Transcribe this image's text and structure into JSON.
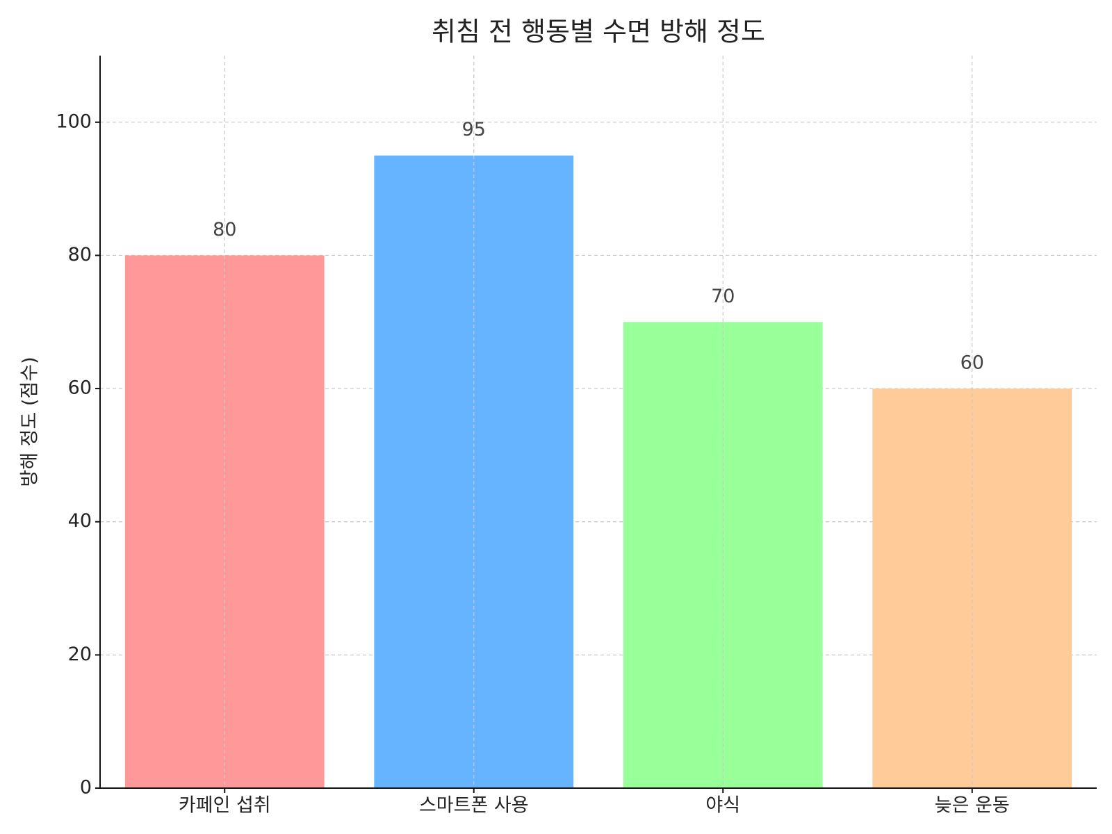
{
  "chart_data": {
    "type": "bar",
    "title": "취침 전 행동별 수면 방해 정도",
    "y_label": "방해 정도 (점수)",
    "categories": [
      "카페인 섭취",
      "스마트폰 사용",
      "야식",
      "늦은 운동"
    ],
    "values": [
      80,
      95,
      70,
      60
    ],
    "colors": [
      "#ff9999",
      "#66b3ff",
      "#99ff99",
      "#ffcc99"
    ],
    "ylim": [
      0,
      110
    ],
    "yticks": [
      0,
      20,
      40,
      60,
      80,
      100
    ],
    "grid": true
  }
}
